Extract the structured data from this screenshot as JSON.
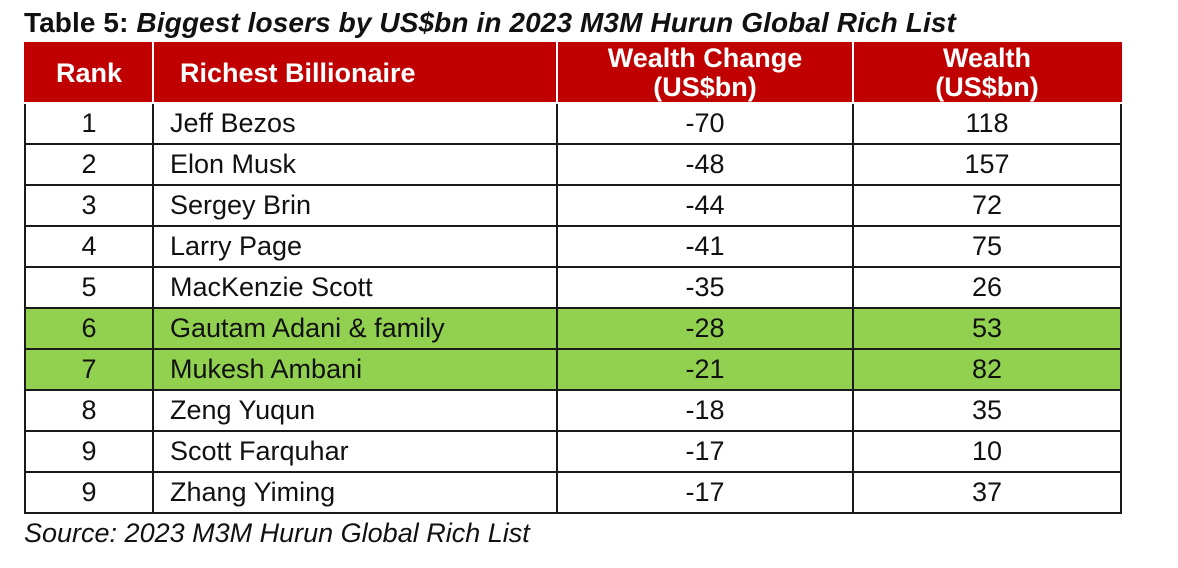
{
  "caption": {
    "label": "Table 5: ",
    "title": "Biggest losers by US$bn in 2023 M3M Hurun Global Rich List"
  },
  "table": {
    "headers": {
      "rank": "Rank",
      "name": "Richest Billionaire",
      "change_line1": "Wealth Change",
      "change_line2": "(US$bn)",
      "wealth_line1": "Wealth",
      "wealth_line2": "(US$bn)"
    },
    "rows": [
      {
        "rank": "1",
        "name": "Jeff Bezos",
        "change": "-70",
        "wealth": "118"
      },
      {
        "rank": "2",
        "name": "Elon Musk",
        "change": "-48",
        "wealth": "157"
      },
      {
        "rank": "3",
        "name": "Sergey Brin",
        "change": "-44",
        "wealth": "72"
      },
      {
        "rank": "4",
        "name": "Larry Page",
        "change": "-41",
        "wealth": "75"
      },
      {
        "rank": "5",
        "name": "MacKenzie Scott",
        "change": "-35",
        "wealth": "26"
      },
      {
        "rank": "6",
        "name": "Gautam Adani & family",
        "change": "-28",
        "wealth": "53"
      },
      {
        "rank": "7",
        "name": "Mukesh Ambani",
        "change": "-21",
        "wealth": "82"
      },
      {
        "rank": "8",
        "name": "Zeng Yuqun",
        "change": "-18",
        "wealth": "35"
      },
      {
        "rank": "9",
        "name": "Scott Farquhar",
        "change": "-17",
        "wealth": "10"
      },
      {
        "rank": "9",
        "name": "Zhang Yiming",
        "change": "-17",
        "wealth": "37"
      }
    ],
    "highlighted_rows": [
      5,
      6
    ],
    "colors": {
      "header_bg": "#c00000",
      "highlight_bg": "#92d050"
    }
  },
  "source": "Source: 2023 M3M Hurun Global Rich List"
}
